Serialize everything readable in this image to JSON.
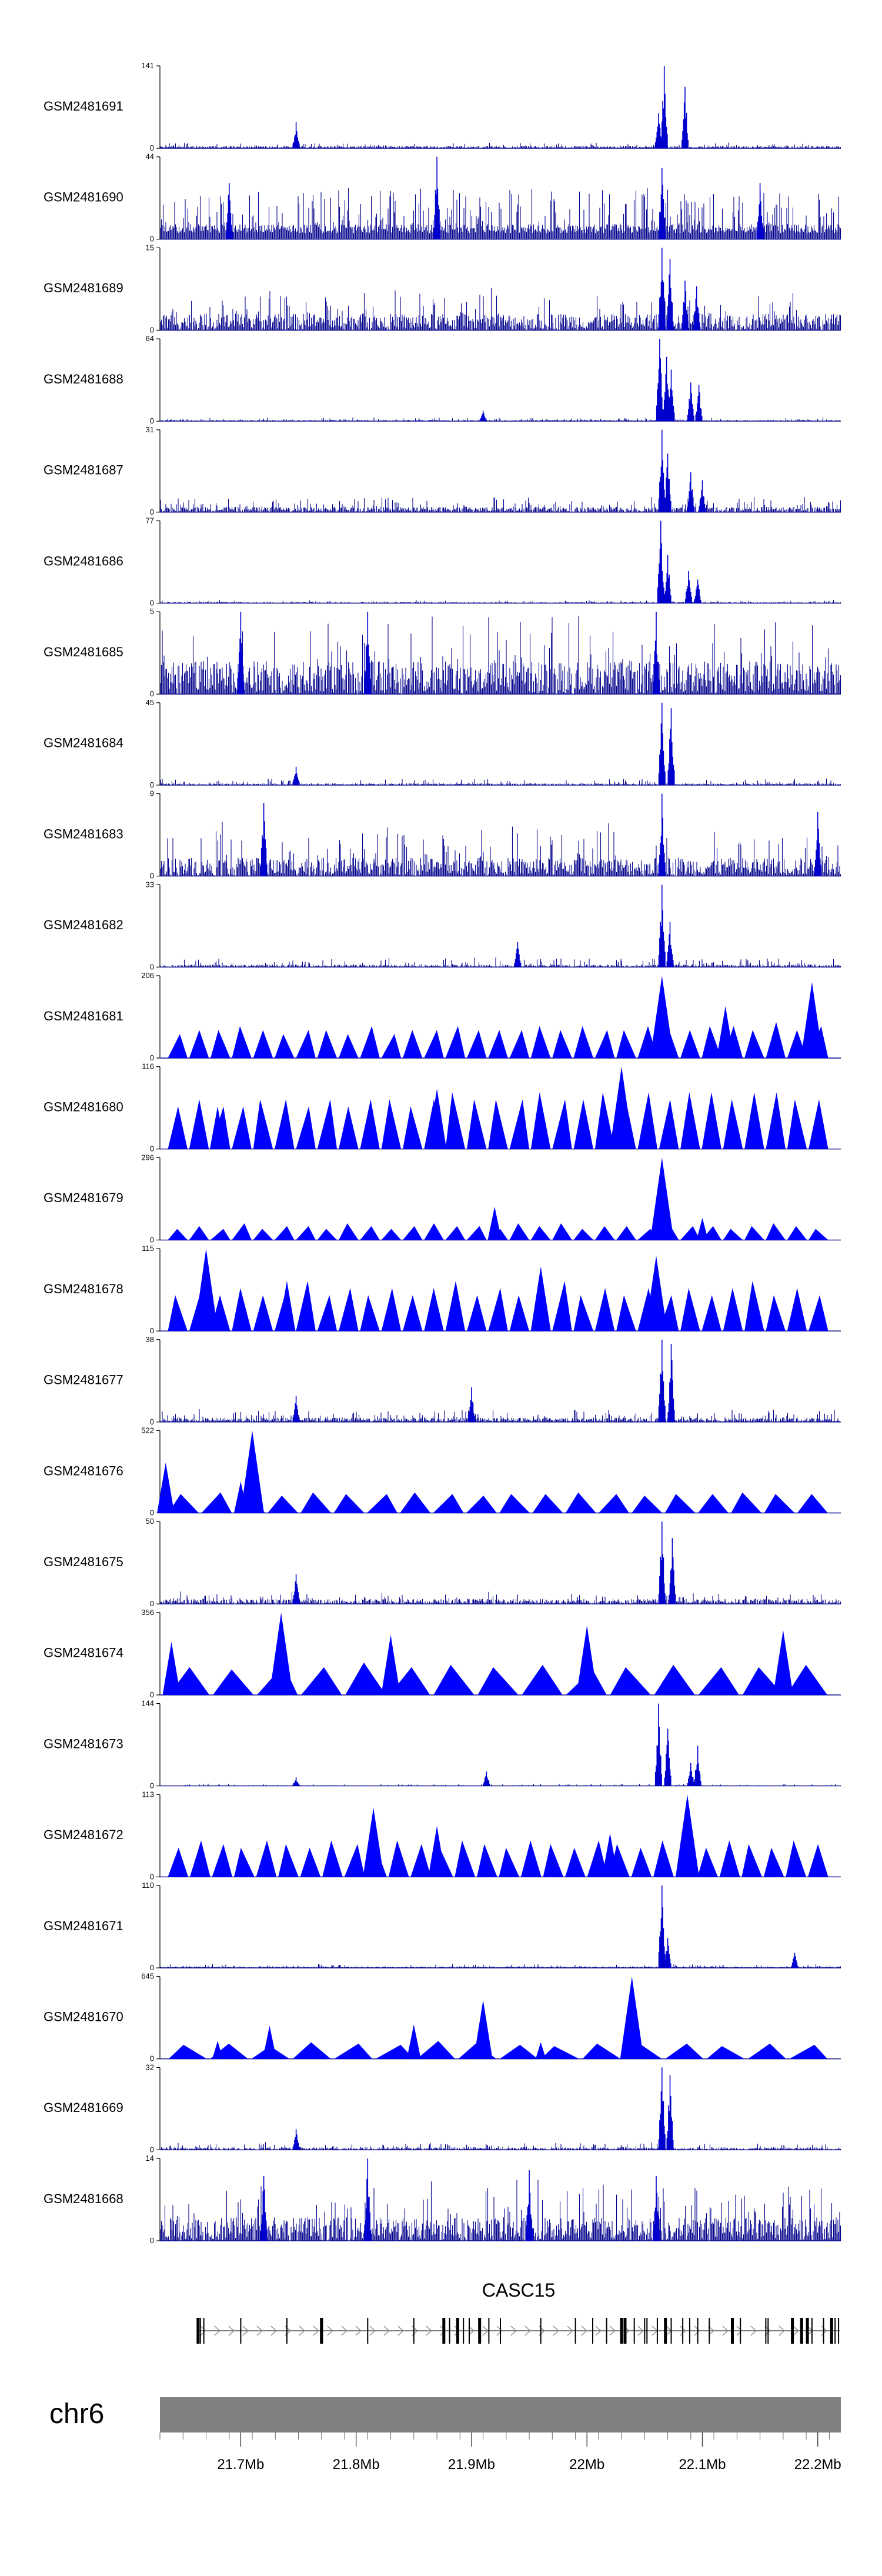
{
  "chart_data": {
    "type": "area",
    "genome": {
      "chromosome": "chr6",
      "range_mb": [
        21.63,
        22.22
      ],
      "ticks": [
        "21.7Mb",
        "21.8Mb",
        "21.9Mb",
        "22Mb",
        "22.1Mb",
        "22.2Mb"
      ],
      "tick_values_mb": [
        21.7,
        21.8,
        21.9,
        22.0,
        22.1,
        22.2
      ]
    },
    "gene": {
      "name": "CASC15",
      "span_mb": [
        21.662,
        22.219
      ],
      "exon_positions_mb": [
        21.663,
        21.665,
        21.668,
        21.7,
        21.74,
        21.77,
        21.77,
        21.81,
        21.85,
        21.876,
        21.881,
        21.888,
        21.893,
        21.898,
        21.907,
        21.915,
        21.925,
        21.96,
        21.99,
        22.005,
        22.017,
        22.03,
        22.033,
        22.041,
        22.05,
        22.052,
        22.061,
        22.068,
        22.073,
        22.083,
        22.089,
        22.096,
        22.106,
        22.126,
        22.133,
        22.155,
        22.157,
        22.178,
        22.186,
        22.191,
        22.195,
        22.205,
        22.212,
        22.215,
        22.218
      ],
      "strand": "+"
    },
    "series": [
      {
        "name": "GSM2481691",
        "ymax": 141,
        "style": "bars",
        "baseline": 4,
        "noise": 6,
        "peaks": [
          [
            21.748,
            45
          ],
          [
            22.067,
            141
          ],
          [
            22.085,
            105
          ],
          [
            22.062,
            60
          ]
        ]
      },
      {
        "name": "GSM2481690",
        "ymax": 44,
        "style": "bars",
        "baseline": 8,
        "noise": 14,
        "peaks": [
          [
            21.87,
            44
          ],
          [
            22.065,
            38
          ],
          [
            21.69,
            30
          ],
          [
            22.15,
            30
          ]
        ]
      },
      {
        "name": "GSM2481689",
        "ymax": 15,
        "style": "bars",
        "baseline": 3,
        "noise": 5,
        "peaks": [
          [
            22.065,
            15
          ],
          [
            22.072,
            13
          ],
          [
            22.085,
            9
          ],
          [
            22.095,
            8
          ]
        ]
      },
      {
        "name": "GSM2481688",
        "ymax": 64,
        "style": "bars",
        "baseline": 1,
        "noise": 2,
        "peaks": [
          [
            22.063,
            64
          ],
          [
            22.069,
            50
          ],
          [
            22.073,
            40
          ],
          [
            22.09,
            30
          ],
          [
            22.097,
            28
          ],
          [
            21.91,
            8
          ]
        ]
      },
      {
        "name": "GSM2481687",
        "ymax": 31,
        "style": "bars",
        "baseline": 2,
        "noise": 4,
        "peaks": [
          [
            22.065,
            31
          ],
          [
            22.07,
            22
          ],
          [
            22.09,
            15
          ],
          [
            22.1,
            12
          ]
        ]
      },
      {
        "name": "GSM2481686",
        "ymax": 77,
        "style": "bars",
        "baseline": 1,
        "noise": 2,
        "peaks": [
          [
            22.064,
            77
          ],
          [
            22.07,
            45
          ],
          [
            22.088,
            30
          ],
          [
            22.096,
            22
          ]
        ]
      },
      {
        "name": "GSM2481685",
        "ymax": 5,
        "style": "bars",
        "baseline": 2,
        "noise": 3,
        "peaks": [
          [
            21.81,
            5
          ],
          [
            22.06,
            5
          ],
          [
            21.7,
            5
          ]
        ]
      },
      {
        "name": "GSM2481684",
        "ymax": 45,
        "style": "bars",
        "baseline": 1,
        "noise": 3,
        "peaks": [
          [
            22.065,
            45
          ],
          [
            22.073,
            42
          ],
          [
            21.748,
            10
          ]
        ]
      },
      {
        "name": "GSM2481683",
        "ymax": 9,
        "style": "bars",
        "baseline": 2,
        "noise": 4,
        "peaks": [
          [
            22.065,
            9
          ],
          [
            21.72,
            8
          ],
          [
            22.2,
            7
          ]
        ]
      },
      {
        "name": "GSM2481682",
        "ymax": 33,
        "style": "bars",
        "baseline": 1,
        "noise": 3,
        "peaks": [
          [
            22.065,
            33
          ],
          [
            22.072,
            18
          ],
          [
            21.94,
            10
          ]
        ]
      },
      {
        "name": "GSM2481681",
        "ymax": 206,
        "style": "triangles",
        "triangle_heights": [
          60,
          70,
          70,
          80,
          70,
          60,
          70,
          70,
          60,
          80,
          60,
          70,
          70,
          80,
          70,
          70,
          70,
          80,
          70,
          80,
          70,
          70,
          80,
          70,
          70,
          80,
          80,
          70,
          90,
          70,
          80
        ],
        "peaks": [
          [
            22.065,
            206
          ],
          [
            22.195,
            190
          ],
          [
            22.12,
            130
          ]
        ]
      },
      {
        "name": "GSM2481680",
        "ymax": 116,
        "style": "triangles",
        "triangle_heights": [
          60,
          70,
          60,
          60,
          70,
          70,
          60,
          70,
          60,
          70,
          70,
          60,
          70,
          80,
          70,
          70,
          70,
          80,
          70,
          70,
          80,
          80,
          80,
          70,
          80,
          80,
          70,
          80,
          80,
          70,
          70
        ],
        "peaks": [
          [
            22.03,
            116
          ],
          [
            21.87,
            85
          ],
          [
            21.68,
            60
          ]
        ]
      },
      {
        "name": "GSM2481679",
        "ymax": 296,
        "style": "triangles",
        "triangle_heights": [
          40,
          50,
          40,
          60,
          40,
          50,
          50,
          40,
          60,
          50,
          40,
          50,
          60,
          50,
          50,
          40,
          60,
          50,
          60,
          40,
          50,
          50,
          40,
          60,
          50,
          50,
          40,
          50,
          60,
          50,
          40
        ],
        "peaks": [
          [
            22.065,
            296
          ],
          [
            21.92,
            120
          ],
          [
            22.1,
            80
          ]
        ]
      },
      {
        "name": "GSM2481678",
        "ymax": 115,
        "style": "triangles",
        "triangle_heights": [
          50,
          60,
          50,
          60,
          50,
          60,
          70,
          50,
          60,
          50,
          60,
          50,
          60,
          70,
          50,
          60,
          50,
          60,
          70,
          50,
          60,
          50,
          60,
          50,
          60,
          50,
          60,
          70,
          50,
          60,
          50
        ],
        "peaks": [
          [
            21.67,
            115
          ],
          [
            22.06,
            105
          ],
          [
            21.96,
            90
          ],
          [
            21.74,
            70
          ]
        ]
      },
      {
        "name": "GSM2481677",
        "ymax": 38,
        "style": "bars",
        "baseline": 2,
        "noise": 4,
        "peaks": [
          [
            22.065,
            38
          ],
          [
            22.073,
            36
          ],
          [
            21.9,
            16
          ],
          [
            21.748,
            12
          ]
        ]
      },
      {
        "name": "GSM2481676",
        "ymax": 522,
        "style": "triangles",
        "triangle_heights": [
          120,
          130,
          120,
          110,
          130,
          120,
          120,
          130,
          120,
          110,
          120,
          120,
          130,
          120,
          110,
          120,
          120,
          130,
          120,
          120
        ],
        "peaks": [
          [
            21.635,
            320
          ],
          [
            21.71,
            522
          ],
          [
            21.7,
            200
          ]
        ]
      },
      {
        "name": "GSM2481675",
        "ymax": 50,
        "style": "bars",
        "baseline": 3,
        "noise": 5,
        "peaks": [
          [
            22.065,
            50
          ],
          [
            22.074,
            40
          ],
          [
            21.748,
            18
          ]
        ]
      },
      {
        "name": "GSM2481674",
        "ymax": 356,
        "style": "triangles",
        "triangle_heights": [
          120,
          110,
          130,
          120,
          140,
          120,
          130,
          120,
          130,
          110,
          120,
          130,
          120,
          120,
          130
        ],
        "peaks": [
          [
            21.735,
            356
          ],
          [
            21.83,
            260
          ],
          [
            22.0,
            300
          ],
          [
            22.17,
            280
          ],
          [
            21.64,
            230
          ]
        ]
      },
      {
        "name": "GSM2481673",
        "ymax": 144,
        "style": "bars",
        "baseline": 1,
        "noise": 3,
        "peaks": [
          [
            22.062,
            144
          ],
          [
            22.07,
            100
          ],
          [
            22.096,
            70
          ],
          [
            22.09,
            40
          ],
          [
            21.913,
            25
          ],
          [
            21.748,
            15
          ]
        ]
      },
      {
        "name": "GSM2481672",
        "ymax": 113,
        "style": "triangles",
        "triangle_heights": [
          40,
          50,
          45,
          40,
          50,
          45,
          40,
          50,
          45,
          40,
          50,
          45,
          40,
          50,
          45,
          40,
          50,
          45,
          40,
          50,
          45,
          40,
          50,
          45,
          40,
          50,
          45,
          40,
          50,
          45
        ],
        "peaks": [
          [
            22.087,
            113
          ],
          [
            21.815,
            95
          ],
          [
            21.87,
            70
          ],
          [
            22.02,
            60
          ]
        ]
      },
      {
        "name": "GSM2481671",
        "ymax": 110,
        "style": "bars",
        "baseline": 2,
        "noise": 4,
        "peaks": [
          [
            22.065,
            110
          ],
          [
            22.07,
            40
          ],
          [
            22.18,
            20
          ]
        ]
      },
      {
        "name": "GSM2481670",
        "ymax": 645,
        "style": "triangles",
        "triangle_heights": [
          110,
          120,
          100,
          130,
          120,
          110,
          140,
          120,
          110,
          100,
          120,
          110,
          120,
          100,
          120,
          110
        ],
        "peaks": [
          [
            22.039,
            645
          ],
          [
            21.91,
            460
          ],
          [
            21.85,
            270
          ],
          [
            21.725,
            260
          ],
          [
            21.68,
            140
          ],
          [
            21.96,
            130
          ]
        ]
      },
      {
        "name": "GSM2481669",
        "ymax": 32,
        "style": "bars",
        "baseline": 1,
        "noise": 2,
        "peaks": [
          [
            22.065,
            32
          ],
          [
            22.072,
            29
          ],
          [
            21.748,
            8
          ]
        ]
      },
      {
        "name": "GSM2481668",
        "ymax": 14,
        "style": "bars",
        "baseline": 4,
        "noise": 7,
        "peaks": [
          [
            21.81,
            14
          ],
          [
            21.95,
            12
          ],
          [
            22.06,
            11
          ],
          [
            21.72,
            11
          ]
        ]
      }
    ]
  }
}
